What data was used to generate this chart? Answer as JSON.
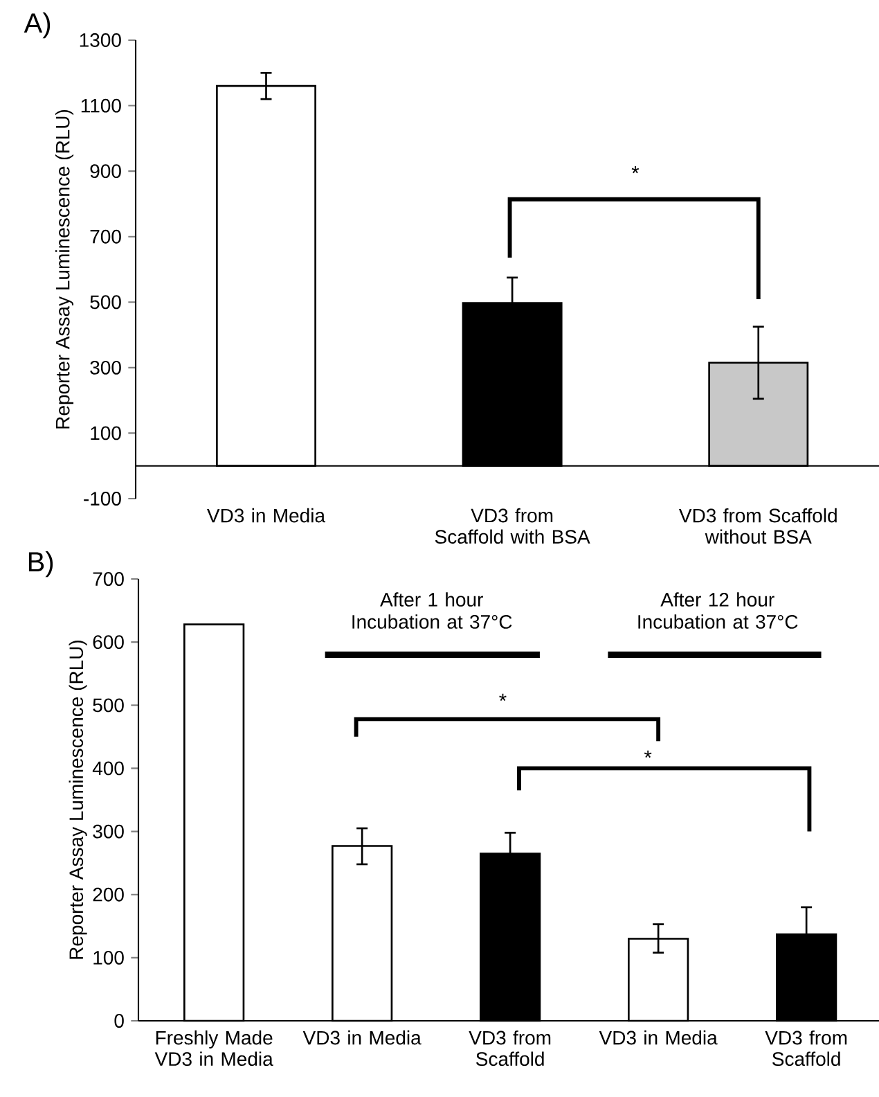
{
  "chart_data": [
    {
      "type": "bar",
      "title": "A)",
      "ylabel": "Reporter Assay Luminescence (RLU)",
      "categories": [
        "VD3 in Media",
        "VD3 from Scaffold with BSA",
        "VD3 from Scaffold without BSA"
      ],
      "values": [
        1160,
        497,
        315
      ],
      "colors": [
        "#ffffff",
        "#000000",
        "#c8c8c8"
      ],
      "errors": [
        [
          1120,
          1200
        ],
        78,
        [
          205,
          425
        ]
      ],
      "ylim": [
        -100,
        1300
      ],
      "yticks": [
        -100,
        100,
        300,
        500,
        700,
        900,
        1100,
        1300
      ],
      "annotations": [
        "*"
      ]
    },
    {
      "type": "bar",
      "title": "B)",
      "ylabel": "Reporter Assay Luminescence  (RLU)",
      "categories": [
        "Freshly Made VD3 in Media",
        "VD3 in Media",
        "VD3 from Scaffold",
        "VD3 in Media",
        "VD3 from Scaffold"
      ],
      "values": [
        628,
        277,
        265,
        130,
        137
      ],
      "colors": [
        "#ffffff",
        "#ffffff",
        "#000000",
        "#ffffff",
        "#000000"
      ],
      "errors": [
        null,
        [
          248,
          305
        ],
        33,
        [
          108,
          153
        ],
        43
      ],
      "ylim": [
        0,
        700
      ],
      "yticks": [
        0,
        100,
        200,
        300,
        400,
        500,
        600,
        700
      ],
      "annotations": [
        "After 1 hour Incubation at 37°C",
        "After 12 hour Incubation at 37°C",
        "*",
        "*"
      ]
    }
  ]
}
